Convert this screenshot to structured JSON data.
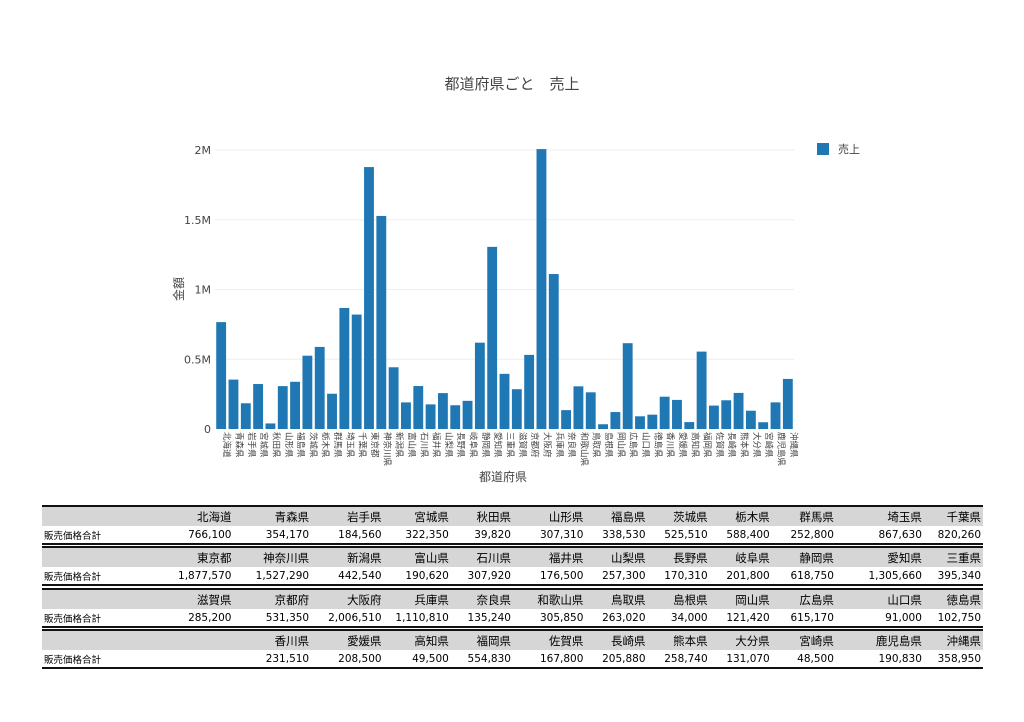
{
  "chart_data": {
    "type": "bar",
    "title": "都道府県ごと　売上",
    "xlabel": "都道府県",
    "ylabel": "金額",
    "ylim": [
      0,
      2000000
    ],
    "yticks": [
      0,
      500000,
      1000000,
      1500000,
      2000000
    ],
    "ytick_labels": [
      "0",
      "0.5M",
      "1M",
      "1.5M",
      "2M"
    ],
    "color": "#1f77b4",
    "legend": "top-right",
    "series": [
      {
        "name": "売上"
      }
    ],
    "categories": [
      "北海道",
      "青森県",
      "岩手県",
      "宮城県",
      "秋田県",
      "山形県",
      "福島県",
      "茨城県",
      "栃木県",
      "群馬県",
      "埼玉県",
      "千葉県",
      "東京都",
      "神奈川県",
      "新潟県",
      "富山県",
      "石川県",
      "福井県",
      "山梨県",
      "長野県",
      "岐阜県",
      "静岡県",
      "愛知県",
      "三重県",
      "滋賀県",
      "京都府",
      "大阪府",
      "兵庫県",
      "奈良県",
      "和歌山県",
      "鳥取県",
      "島根県",
      "岡山県",
      "広島県",
      "山口県",
      "徳島県",
      "香川県",
      "愛媛県",
      "高知県",
      "福岡県",
      "佐賀県",
      "長崎県",
      "熊本県",
      "大分県",
      "宮崎県",
      "鹿児島県",
      "沖縄県"
    ],
    "values": [
      766100,
      354170,
      184560,
      322350,
      39820,
      307310,
      338530,
      525510,
      588400,
      252800,
      867630,
      820260,
      1877570,
      1527290,
      442540,
      190620,
      307920,
      176500,
      257300,
      170310,
      201800,
      618750,
      1305660,
      395340,
      285200,
      531350,
      2006510,
      1110810,
      135240,
      305850,
      263020,
      34000,
      121420,
      615170,
      91000,
      102750,
      231510,
      208500,
      49500,
      554830,
      167800,
      205880,
      258740,
      131070,
      48500,
      190830,
      358950
    ]
  },
  "table": {
    "row_label": "販売価格合計",
    "blocks": [
      {
        "cols": [
          {
            "name": "北海道",
            "value": "766,100"
          },
          {
            "name": "青森県",
            "value": "354,170"
          },
          {
            "name": "岩手県",
            "value": "184,560"
          },
          {
            "name": "宮城県",
            "value": "322,350"
          },
          {
            "name": "秋田県",
            "value": "39,820"
          },
          {
            "name": "山形県",
            "value": "307,310"
          },
          {
            "name": "福島県",
            "value": "338,530"
          },
          {
            "name": "茨城県",
            "value": "525,510"
          },
          {
            "name": "栃木県",
            "value": "588,400"
          },
          {
            "name": "群馬県",
            "value": "252,800"
          },
          {
            "name": "埼玉県",
            "value": "867,630"
          },
          {
            "name": "千葉県",
            "value": "820,260"
          }
        ]
      },
      {
        "cols": [
          {
            "name": "東京都",
            "value": "1,877,570"
          },
          {
            "name": "神奈川県",
            "value": "1,527,290"
          },
          {
            "name": "新潟県",
            "value": "442,540"
          },
          {
            "name": "富山県",
            "value": "190,620"
          },
          {
            "name": "石川県",
            "value": "307,920"
          },
          {
            "name": "福井県",
            "value": "176,500"
          },
          {
            "name": "山梨県",
            "value": "257,300"
          },
          {
            "name": "長野県",
            "value": "170,310"
          },
          {
            "name": "岐阜県",
            "value": "201,800"
          },
          {
            "name": "静岡県",
            "value": "618,750"
          },
          {
            "name": "愛知県",
            "value": "1,305,660"
          },
          {
            "name": "三重県",
            "value": "395,340"
          }
        ]
      },
      {
        "cols": [
          {
            "name": "滋賀県",
            "value": "285,200"
          },
          {
            "name": "京都府",
            "value": "531,350"
          },
          {
            "name": "大阪府",
            "value": "2,006,510"
          },
          {
            "name": "兵庫県",
            "value": "1,110,810"
          },
          {
            "name": "奈良県",
            "value": "135,240"
          },
          {
            "name": "和歌山県",
            "value": "305,850"
          },
          {
            "name": "鳥取県",
            "value": "263,020"
          },
          {
            "name": "島根県",
            "value": "34,000"
          },
          {
            "name": "岡山県",
            "value": "121,420"
          },
          {
            "name": "広島県",
            "value": "615,170"
          },
          {
            "name": "山口県",
            "value": "91,000"
          },
          {
            "name": "徳島県",
            "value": "102,750"
          }
        ]
      },
      {
        "cols": [
          {
            "name": "",
            "value": ""
          },
          {
            "name": "香川県",
            "value": "231,510"
          },
          {
            "name": "愛媛県",
            "value": "208,500"
          },
          {
            "name": "高知県",
            "value": "49,500"
          },
          {
            "name": "福岡県",
            "value": "554,830"
          },
          {
            "name": "佐賀県",
            "value": "167,800"
          },
          {
            "name": "長崎県",
            "value": "205,880"
          },
          {
            "name": "熊本県",
            "value": "258,740"
          },
          {
            "name": "大分県",
            "value": "131,070"
          },
          {
            "name": "宮崎県",
            "value": "48,500"
          },
          {
            "name": "鹿児島県",
            "value": "190,830"
          },
          {
            "name": "沖縄県",
            "value": "358,950"
          }
        ]
      }
    ]
  }
}
